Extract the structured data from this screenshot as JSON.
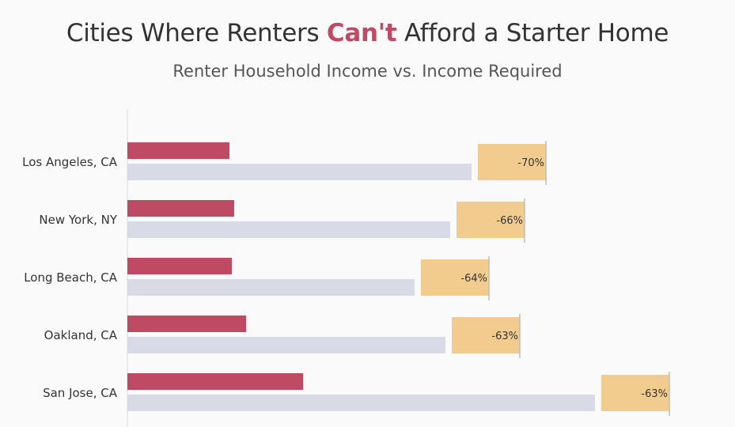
{
  "header": {
    "title_pre": "Cities Where Renters ",
    "title_highlight": "Can't",
    "title_post": " Afford a Starter Home",
    "subtitle": "Renter Household Income vs. Income Required"
  },
  "colors": {
    "renter_income": "#bf4a63",
    "income_required": "#d8dae6",
    "gap": "#f2cc8f",
    "axis": "#d9d9d9",
    "marker": "#bdbdbd"
  },
  "chart_data": {
    "type": "bar",
    "categories": [
      "Los Angeles, CA",
      "New York, NY",
      "Long Beach, CA",
      "Oakland, CA",
      "San Jose, CA"
    ],
    "series": [
      {
        "values": [
          43,
          45,
          44,
          50,
          74
        ]
      },
      {
        "values": [
          145,
          136,
          121,
          134,
          197
        ]
      }
    ],
    "gap_labels": [
      "-70%",
      "-66%",
      "-64%",
      "-63%",
      "-63%"
    ],
    "xlim": [
      0,
      240
    ]
  }
}
